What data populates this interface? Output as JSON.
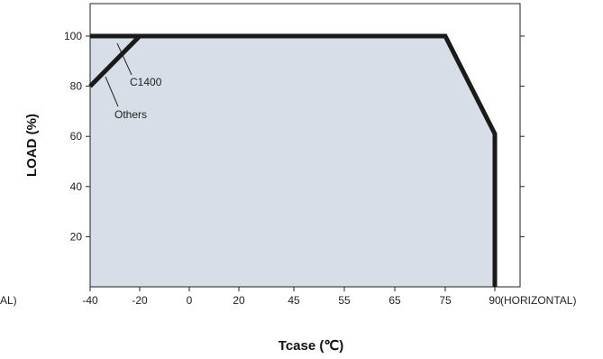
{
  "chart_data": {
    "type": "area",
    "title": "",
    "xlabel": "Tcase (℃)",
    "ylabel": "LOAD (%)",
    "x_ticks": [
      "-40",
      "-20",
      "0",
      "20",
      "45",
      "55",
      "65",
      "75",
      "90"
    ],
    "y_ticks": [
      "20",
      "40",
      "60",
      "80",
      "100"
    ],
    "ylim": [
      0,
      110
    ],
    "x_suffix": "(HORIZONTAL)",
    "left_clip_text": "AL)",
    "grid": false,
    "fill_color": "#d7dee8",
    "line_color": "#1a1a1a",
    "series": [
      {
        "name": "C1400",
        "x": [
          -40,
          75,
          90,
          90
        ],
        "y": [
          100,
          100,
          61,
          0
        ]
      },
      {
        "name": "Others",
        "x": [
          -40,
          -20
        ],
        "y": [
          80,
          100
        ]
      }
    ],
    "annotations": [
      {
        "text": "C1400"
      },
      {
        "text": "Others"
      }
    ]
  }
}
